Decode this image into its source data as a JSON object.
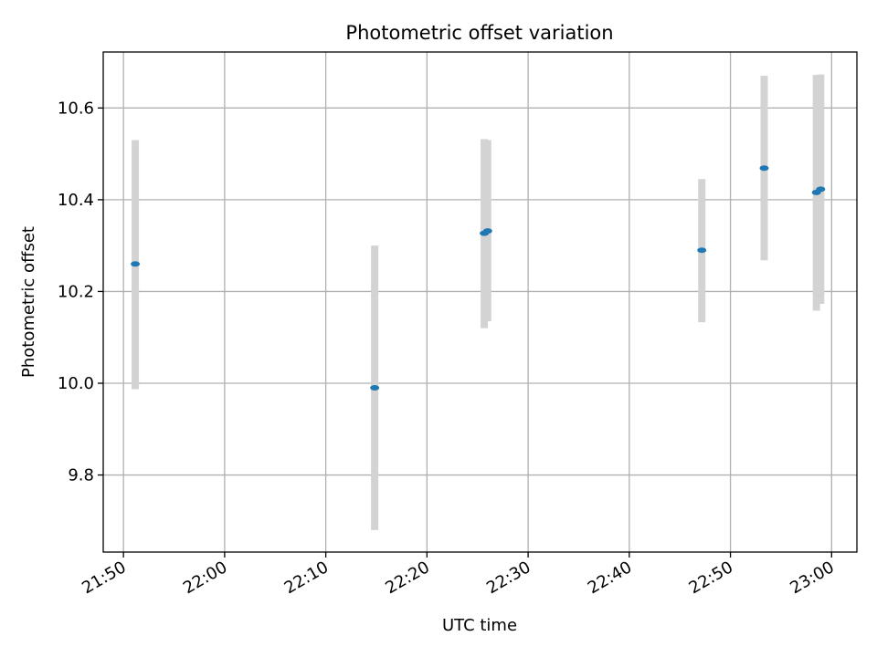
{
  "chart_data": {
    "type": "scatter",
    "title": "Photometric offset variation",
    "xlabel": "UTC time",
    "ylabel": "Photometric offset",
    "x_axis_kind": "time",
    "xlim": [
      "21:48",
      "23:02.5"
    ],
    "ylim": [
      9.632,
      10.722
    ],
    "x_ticks": [
      "21:50",
      "22:00",
      "22:10",
      "22:20",
      "22:30",
      "22:40",
      "22:50",
      "23:00"
    ],
    "y_ticks": [
      "9.8",
      "10.0",
      "10.2",
      "10.4",
      "10.6"
    ],
    "grid": true,
    "colors": {
      "point": "#1f77b4",
      "errorbar": "#d3d3d3",
      "grid": "#b0b0b0"
    },
    "series": [
      {
        "points": [
          {
            "x": "21:51:10",
            "y": 10.26,
            "err_low": 9.987,
            "err_high": 10.53
          },
          {
            "x": "22:14:50",
            "y": 9.99,
            "err_low": 9.68,
            "err_high": 10.3
          },
          {
            "x": "22:25:40",
            "y": 10.327,
            "err_low": 10.12,
            "err_high": 10.532
          },
          {
            "x": "22:26:00",
            "y": 10.332,
            "err_low": 10.135,
            "err_high": 10.53
          },
          {
            "x": "22:47:10",
            "y": 10.29,
            "err_low": 10.133,
            "err_high": 10.445
          },
          {
            "x": "22:53:20",
            "y": 10.469,
            "err_low": 10.268,
            "err_high": 10.67
          },
          {
            "x": "22:58:30",
            "y": 10.416,
            "err_low": 10.158,
            "err_high": 10.672
          },
          {
            "x": "22:58:55",
            "y": 10.423,
            "err_low": 10.173,
            "err_high": 10.673
          }
        ]
      }
    ]
  }
}
